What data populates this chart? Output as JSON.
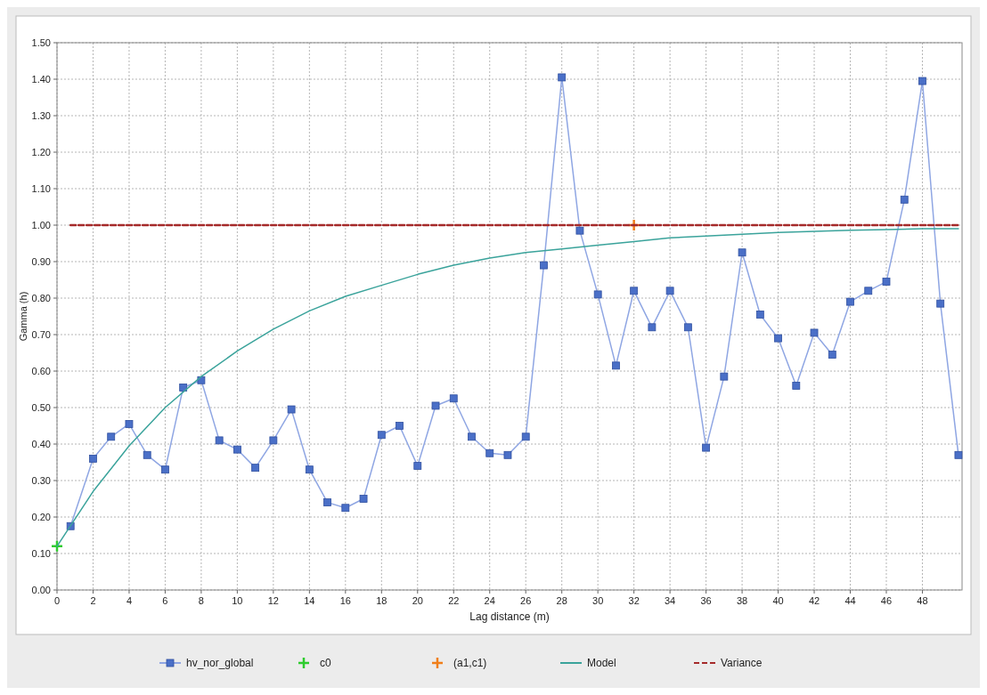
{
  "chart_data": {
    "type": "line",
    "xlabel": "Lag distance (m)",
    "ylabel": "Gamma (h)",
    "xlim": [
      0,
      50.2
    ],
    "ylim": [
      0,
      1.5
    ],
    "xticks": [
      0,
      2,
      4,
      6,
      8,
      10,
      12,
      14,
      16,
      18,
      20,
      22,
      24,
      26,
      28,
      30,
      32,
      34,
      36,
      38,
      40,
      42,
      44,
      46,
      48
    ],
    "yticks": [
      {
        "value": 0,
        "label": "0.00"
      },
      {
        "value": 0.1,
        "label": "0.10"
      },
      {
        "value": 0.2,
        "label": "0.20"
      },
      {
        "value": 0.3,
        "label": "0.30"
      },
      {
        "value": 0.4,
        "label": "0.40"
      },
      {
        "value": 0.5,
        "label": "0.50"
      },
      {
        "value": 0.6,
        "label": "0.60"
      },
      {
        "value": 0.7,
        "label": "0.70"
      },
      {
        "value": 0.8,
        "label": "0.80"
      },
      {
        "value": 0.9,
        "label": "0.90"
      },
      {
        "value": 1,
        "label": "1.00"
      },
      {
        "value": 1.1,
        "label": "1.10"
      },
      {
        "value": 1.2,
        "label": "1.20"
      },
      {
        "value": 1.3,
        "label": "1.30"
      },
      {
        "value": 1.4,
        "label": "1.40"
      },
      {
        "value": 1.5,
        "label": "1.50"
      }
    ],
    "grid": true,
    "legend": "bottom",
    "series": [
      {
        "name": "hv_nor_global",
        "type": "line",
        "marker": "square",
        "color": "#4a6fc7",
        "x": [
          0.75,
          2,
          3,
          4,
          5,
          6,
          7,
          8,
          9,
          10,
          11,
          12,
          13,
          14,
          15,
          16,
          17,
          18,
          19,
          20,
          21,
          22,
          23,
          24,
          25,
          26,
          27,
          28,
          29,
          30,
          31,
          32,
          33,
          34,
          35,
          36,
          37,
          38,
          39,
          40,
          41,
          42,
          43,
          44,
          45,
          46,
          47,
          48,
          49,
          50
        ],
        "values": [
          0.175,
          0.36,
          0.42,
          0.455,
          0.37,
          0.33,
          0.555,
          0.575,
          0.41,
          0.385,
          0.335,
          0.41,
          0.495,
          0.33,
          0.24,
          0.225,
          0.25,
          0.425,
          0.45,
          0.34,
          0.505,
          0.525,
          0.42,
          0.375,
          0.37,
          0.42,
          0.89,
          1.405,
          0.985,
          0.81,
          0.615,
          0.82,
          0.72,
          0.82,
          0.72,
          0.39,
          0.585,
          0.925,
          0.755,
          0.69,
          0.56,
          0.705,
          0.645,
          0.79,
          0.82,
          0.845,
          1.07,
          1.395,
          0.785,
          0.37
        ]
      },
      {
        "name": "c0",
        "type": "scatter",
        "marker": "cross",
        "color": "#2ecc2e",
        "x": [
          0
        ],
        "values": [
          0.12
        ]
      },
      {
        "name": "(a1,c1)",
        "type": "scatter",
        "marker": "cross",
        "color": "#f07f1a",
        "x": [
          32
        ],
        "values": [
          1.0
        ]
      },
      {
        "name": "Model",
        "type": "line",
        "marker": "none",
        "color": "#3aa39b",
        "x": [
          0,
          2,
          4,
          6,
          8,
          10,
          12,
          14,
          16,
          18,
          20,
          22,
          24,
          26,
          28,
          30,
          32,
          34,
          36,
          38,
          40,
          42,
          44,
          46,
          48,
          50
        ],
        "values": [
          0.12,
          0.27,
          0.395,
          0.5,
          0.585,
          0.655,
          0.715,
          0.765,
          0.805,
          0.835,
          0.865,
          0.89,
          0.91,
          0.925,
          0.935,
          0.945,
          0.955,
          0.965,
          0.97,
          0.975,
          0.98,
          0.983,
          0.986,
          0.988,
          0.99,
          0.99
        ]
      },
      {
        "name": "Variance",
        "type": "line",
        "marker": "none",
        "line_style": "dashed",
        "color": "#a52a2a",
        "x": [
          0.75,
          50
        ],
        "values": [
          1.0,
          1.0
        ]
      }
    ]
  }
}
